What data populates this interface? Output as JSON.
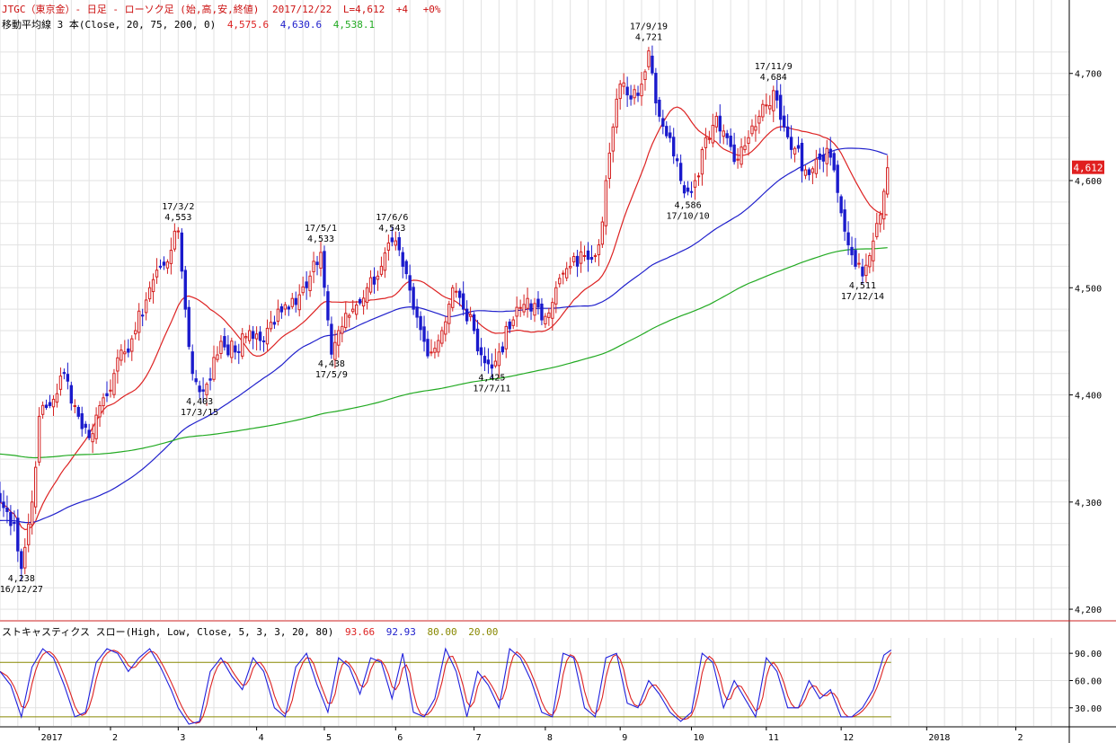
{
  "header": {
    "line1": {
      "symbol": "JTGC（東京金）- 日足 - ローソク足 (始,高,安,終値)",
      "date": "2017/12/22",
      "last": "L=4,612",
      "change": "+4",
      "pct": "+0%"
    },
    "line2": {
      "label": "移動平均線 3 本(Close, 20, 75, 200, 0)",
      "ma20": "4,575.6",
      "ma75": "4,630.6",
      "ma200": "4,538.1"
    },
    "line3": {
      "label": "ストキャスティクス スロー(High, Low, Close, 5, 3, 3, 20, 80)",
      "k": "93.66",
      "d": "92.93",
      "upper": "80.00",
      "lower": "20.00"
    }
  },
  "colors": {
    "up": "#d42020",
    "down": "#1a1acc",
    "ma20": "#dd2222",
    "ma75": "#2020cc",
    "ma200": "#22aa22",
    "stochK": "#2020dd",
    "stochD": "#dd2222",
    "bands": "#888800",
    "grid": "#e2e2e2",
    "separator": "#cc2222",
    "lastBadge": "#e02020"
  },
  "last_price_badge": "4,612",
  "chart_data": [
    {
      "type": "candlestick",
      "ylim": [
        4190,
        4735
      ],
      "yticks": [
        {
          "value": 4200,
          "label": "4,200"
        },
        {
          "value": 4300,
          "label": "4,300"
        },
        {
          "value": 4400,
          "label": "4,400"
        },
        {
          "value": 4500,
          "label": "4,500"
        },
        {
          "value": 4600,
          "label": "4,600"
        },
        {
          "value": 4700,
          "label": "4,700"
        }
      ],
      "xlim": [
        0,
        300
      ],
      "xticks": [
        {
          "x": 11,
          "label": "2017"
        },
        {
          "x": 31,
          "label": "2"
        },
        {
          "x": 50,
          "label": "3"
        },
        {
          "x": 72,
          "label": "4"
        },
        {
          "x": 91,
          "label": "5"
        },
        {
          "x": 111,
          "label": "6"
        },
        {
          "x": 133,
          "label": "7"
        },
        {
          "x": 153,
          "label": "8"
        },
        {
          "x": 174,
          "label": "9"
        },
        {
          "x": 194,
          "label": "10"
        },
        {
          "x": 215,
          "label": "11"
        },
        {
          "x": 236,
          "label": "12"
        },
        {
          "x": 260,
          "label": "2018"
        },
        {
          "x": 285,
          "label": "2"
        }
      ],
      "anchors": [
        [
          0,
          4300
        ],
        [
          4,
          4280
        ],
        [
          6,
          4238
        ],
        [
          9,
          4300
        ],
        [
          11,
          4380
        ],
        [
          14,
          4390
        ],
        [
          18,
          4420
        ],
        [
          22,
          4380
        ],
        [
          25,
          4360
        ],
        [
          28,
          4390
        ],
        [
          32,
          4420
        ],
        [
          35,
          4440
        ],
        [
          38,
          4460
        ],
        [
          42,
          4500
        ],
        [
          45,
          4520
        ],
        [
          48,
          4535
        ],
        [
          50,
          4553
        ],
        [
          52,
          4480
        ],
        [
          54,
          4420
        ],
        [
          56,
          4403
        ],
        [
          58,
          4410
        ],
        [
          62,
          4450
        ],
        [
          66,
          4440
        ],
        [
          70,
          4460
        ],
        [
          74,
          4450
        ],
        [
          78,
          4480
        ],
        [
          82,
          4490
        ],
        [
          86,
          4500
        ],
        [
          90,
          4533
        ],
        [
          92,
          4470
        ],
        [
          93,
          4438
        ],
        [
          95,
          4460
        ],
        [
          99,
          4480
        ],
        [
          103,
          4500
        ],
        [
          107,
          4520
        ],
        [
          110,
          4543
        ],
        [
          113,
          4520
        ],
        [
          116,
          4480
        ],
        [
          119,
          4450
        ],
        [
          121,
          4440
        ],
        [
          124,
          4460
        ],
        [
          127,
          4500
        ],
        [
          130,
          4480
        ],
        [
          133,
          4460
        ],
        [
          136,
          4430
        ],
        [
          138,
          4425
        ],
        [
          140,
          4440
        ],
        [
          144,
          4470
        ],
        [
          148,
          4490
        ],
        [
          152,
          4470
        ],
        [
          156,
          4500
        ],
        [
          160,
          4520
        ],
        [
          164,
          4530
        ],
        [
          168,
          4540
        ],
        [
          170,
          4600
        ],
        [
          172,
          4650
        ],
        [
          174,
          4690
        ],
        [
          176,
          4680
        ],
        [
          180,
          4690
        ],
        [
          182,
          4721
        ],
        [
          185,
          4660
        ],
        [
          188,
          4640
        ],
        [
          191,
          4600
        ],
        [
          193,
          4590
        ],
        [
          195,
          4600
        ],
        [
          198,
          4640
        ],
        [
          201,
          4660
        ],
        [
          204,
          4640
        ],
        [
          207,
          4620
        ],
        [
          210,
          4640
        ],
        [
          213,
          4660
        ],
        [
          216,
          4670
        ],
        [
          217,
          4684
        ],
        [
          220,
          4650
        ],
        [
          223,
          4630
        ],
        [
          226,
          4610
        ],
        [
          229,
          4620
        ],
        [
          232,
          4630
        ],
        [
          234,
          4610
        ],
        [
          236,
          4570
        ],
        [
          238,
          4540
        ],
        [
          240,
          4520
        ],
        [
          242,
          4511
        ],
        [
          244,
          4530
        ],
        [
          246,
          4560
        ],
        [
          248,
          4590
        ],
        [
          249,
          4612
        ]
      ],
      "annotations": [
        {
          "x": 6,
          "price": 4238,
          "date": "16/12/27",
          "value": "4,238",
          "pos": "below"
        },
        {
          "x": 50,
          "price": 4553,
          "date": "17/3/2",
          "value": "4,553",
          "pos": "above"
        },
        {
          "x": 56,
          "price": 4403,
          "date": "17/3/15",
          "value": "4,403",
          "pos": "below"
        },
        {
          "x": 90,
          "price": 4533,
          "date": "17/5/1",
          "value": "4,533",
          "pos": "above"
        },
        {
          "x": 93,
          "price": 4438,
          "date": "17/5/9",
          "value": "4,438",
          "pos": "below"
        },
        {
          "x": 110,
          "price": 4543,
          "date": "17/6/6",
          "value": "4,543",
          "pos": "above"
        },
        {
          "x": 138,
          "price": 4425,
          "date": "17/7/11",
          "value": "4,425",
          "pos": "below"
        },
        {
          "x": 182,
          "price": 4721,
          "date": "17/9/19",
          "value": "4,721",
          "pos": "above"
        },
        {
          "x": 193,
          "price": 4586,
          "date": "17/10/10",
          "value": "4,586",
          "pos": "below"
        },
        {
          "x": 217,
          "price": 4684,
          "date": "17/11/9",
          "value": "4,684",
          "pos": "above"
        },
        {
          "x": 242,
          "price": 4511,
          "date": "17/12/14",
          "value": "4,511",
          "pos": "below"
        }
      ]
    },
    {
      "type": "line",
      "ylim": [
        10,
        105
      ],
      "yticks": [
        {
          "value": 30,
          "label": "30.00"
        },
        {
          "value": 60,
          "label": "60.00"
        },
        {
          "value": 90,
          "label": "90.00"
        }
      ],
      "bands": [
        20,
        80
      ],
      "k_anchors": [
        [
          0,
          70
        ],
        [
          3,
          55
        ],
        [
          6,
          20
        ],
        [
          9,
          75
        ],
        [
          12,
          95
        ],
        [
          15,
          85
        ],
        [
          18,
          55
        ],
        [
          21,
          20
        ],
        [
          24,
          25
        ],
        [
          27,
          80
        ],
        [
          30,
          95
        ],
        [
          33,
          90
        ],
        [
          36,
          70
        ],
        [
          39,
          85
        ],
        [
          42,
          95
        ],
        [
          45,
          75
        ],
        [
          48,
          50
        ],
        [
          50,
          30
        ],
        [
          53,
          12
        ],
        [
          56,
          15
        ],
        [
          59,
          70
        ],
        [
          62,
          85
        ],
        [
          65,
          65
        ],
        [
          68,
          50
        ],
        [
          71,
          85
        ],
        [
          74,
          70
        ],
        [
          77,
          30
        ],
        [
          80,
          20
        ],
        [
          83,
          75
        ],
        [
          86,
          90
        ],
        [
          89,
          55
        ],
        [
          92,
          25
        ],
        [
          95,
          85
        ],
        [
          98,
          75
        ],
        [
          101,
          45
        ],
        [
          104,
          85
        ],
        [
          107,
          80
        ],
        [
          110,
          40
        ],
        [
          113,
          90
        ],
        [
          116,
          25
        ],
        [
          119,
          20
        ],
        [
          122,
          40
        ],
        [
          125,
          95
        ],
        [
          128,
          70
        ],
        [
          131,
          20
        ],
        [
          134,
          70
        ],
        [
          137,
          55
        ],
        [
          140,
          30
        ],
        [
          143,
          95
        ],
        [
          146,
          85
        ],
        [
          149,
          60
        ],
        [
          152,
          25
        ],
        [
          155,
          20
        ],
        [
          158,
          90
        ],
        [
          161,
          85
        ],
        [
          164,
          30
        ],
        [
          167,
          20
        ],
        [
          170,
          85
        ],
        [
          173,
          90
        ],
        [
          176,
          35
        ],
        [
          179,
          30
        ],
        [
          182,
          60
        ],
        [
          185,
          45
        ],
        [
          188,
          25
        ],
        [
          191,
          15
        ],
        [
          194,
          25
        ],
        [
          197,
          90
        ],
        [
          200,
          80
        ],
        [
          203,
          30
        ],
        [
          206,
          60
        ],
        [
          209,
          40
        ],
        [
          212,
          20
        ],
        [
          215,
          85
        ],
        [
          218,
          70
        ],
        [
          221,
          30
        ],
        [
          224,
          30
        ],
        [
          227,
          60
        ],
        [
          230,
          40
        ],
        [
          233,
          50
        ],
        [
          236,
          20
        ],
        [
          239,
          20
        ],
        [
          242,
          30
        ],
        [
          245,
          50
        ],
        [
          248,
          88
        ],
        [
          250,
          93.66
        ]
      ]
    }
  ]
}
